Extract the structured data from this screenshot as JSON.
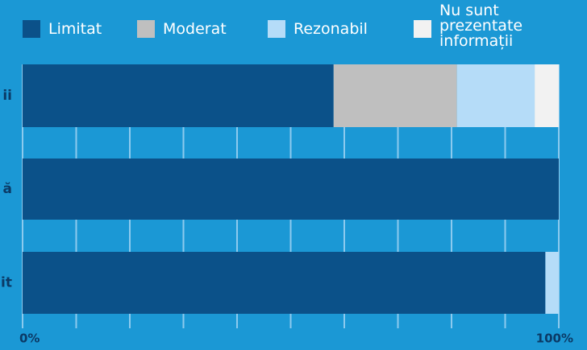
{
  "chart_data": {
    "type": "stacked-barh",
    "categories": [
      "ii",
      "ă",
      "it"
    ],
    "series": [
      {
        "name": "Limitat",
        "color": "#0b5189",
        "values": [
          58,
          100,
          97.5
        ]
      },
      {
        "name": "Moderat",
        "color": "#bfbfbf",
        "values": [
          23,
          0,
          0
        ]
      },
      {
        "name": "Rezonabil",
        "color": "#b5dcf8",
        "values": [
          14.5,
          0,
          2.5
        ]
      },
      {
        "name": "Nu sunt prezentate informații",
        "color": "#f2f2f2",
        "values": [
          4.5,
          0,
          0
        ]
      }
    ],
    "xlim": [
      0,
      100
    ],
    "xticks": [
      {
        "value": 0,
        "label": "0%"
      },
      10,
      20,
      30,
      40,
      50,
      60,
      70,
      80,
      90,
      {
        "value": 100,
        "label": "100%"
      }
    ],
    "grid": true
  }
}
